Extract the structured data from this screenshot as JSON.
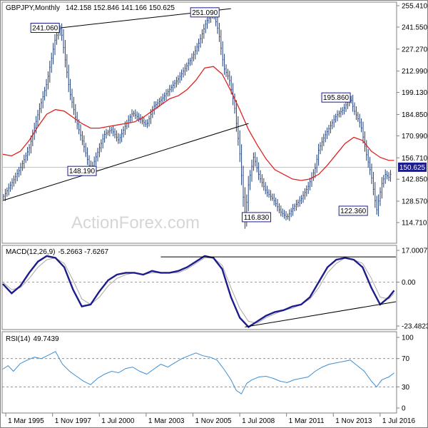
{
  "header": {
    "symbol": "GBPJPY,Monthly",
    "ohlc": "142.158 152.846 141.166 150.625"
  },
  "watermark": "ActionForex.com",
  "colors": {
    "price": "#1f3f7a",
    "ma": "#e02020",
    "macd": "#1c1c8c",
    "signal": "#a8a8a8",
    "rsi": "#3d8fd4",
    "trend": "#000000",
    "label_border": "#1c1c8c",
    "last_price_bg": "#1c1c8c"
  },
  "chart_data": [
    {
      "type": "line",
      "panel": "price",
      "ylim": [
        114.71,
        255.41
      ],
      "y_ticks": [
        "255.410",
        "241.550",
        "227.270",
        "212.990",
        "199.130",
        "184.850",
        "170.990",
        "156.710",
        "142.850",
        "128.570",
        "114.710"
      ],
      "last_value": "150.625",
      "x_ticks": [
        "1 Mar 1995",
        "1 Nov 1997",
        "1 Jul 2000",
        "1 Mar 2003",
        "1 Nov 2005",
        "1 Jul 2008",
        "1 Mar 2011",
        "1 Nov 2013",
        "1 Jul 2016"
      ],
      "x_range": [
        1995.0,
        2017.4
      ],
      "series": [
        {
          "role": "price",
          "x": [
            1995.0,
            1995.6,
            1996.0,
            1996.5,
            1997.0,
            1997.5,
            1998.0,
            1998.3,
            1998.8,
            1999.2,
            1999.6,
            2000.0,
            2000.4,
            2000.8,
            2001.2,
            2001.6,
            2002.0,
            2002.4,
            2002.8,
            2003.2,
            2003.6,
            2004.0,
            2004.5,
            2005.0,
            2005.4,
            2005.8,
            2006.2,
            2006.6,
            2007.0,
            2007.3,
            2007.6,
            2007.9,
            2008.2,
            2008.5,
            2008.8,
            2009.0,
            2009.3,
            2009.6,
            2010.0,
            2010.4,
            2010.8,
            2011.2,
            2011.6,
            2012.0,
            2012.4,
            2012.8,
            2013.0,
            2013.3,
            2013.6,
            2014.0,
            2014.4,
            2014.8,
            2015.0,
            2015.4,
            2015.7,
            2016.0,
            2016.3,
            2016.6,
            2016.8,
            2017.0,
            2017.3
          ],
          "values": [
            131,
            142,
            150,
            163,
            185,
            205,
            235,
            241.06,
            200,
            180,
            165,
            148.19,
            160,
            172,
            175,
            168,
            178,
            186,
            182,
            178,
            190,
            194,
            201,
            208,
            215,
            222,
            232,
            245,
            251.09,
            238,
            215,
            208,
            190,
            160,
            116.83,
            140,
            158,
            145,
            135,
            130,
            122,
            118,
            125,
            130,
            138,
            150,
            162,
            170,
            176,
            184,
            188,
            195.86,
            188,
            178,
            160,
            145,
            122.36,
            140,
            146,
            144,
            150.625
          ]
        },
        {
          "role": "moving-average",
          "x": [
            1995.0,
            1995.5,
            1996.0,
            1996.5,
            1997.0,
            1997.5,
            1998.0,
            1998.5,
            1999.0,
            1999.5,
            2000.0,
            2000.5,
            2001.0,
            2001.5,
            2002.0,
            2002.5,
            2003.0,
            2003.5,
            2004.0,
            2004.5,
            2005.0,
            2005.5,
            2006.0,
            2006.5,
            2007.0,
            2007.5,
            2008.0,
            2008.5,
            2009.0,
            2009.5,
            2010.0,
            2010.5,
            2011.0,
            2011.5,
            2012.0,
            2012.5,
            2013.0,
            2013.5,
            2014.0,
            2014.5,
            2015.0,
            2015.5,
            2016.0,
            2016.5,
            2017.0,
            2017.3
          ],
          "values": [
            159,
            158,
            161,
            168,
            177,
            185,
            188,
            187,
            183,
            179,
            176,
            176,
            177,
            178,
            179,
            180,
            183,
            187,
            191,
            195,
            197,
            201,
            207,
            215,
            216,
            211,
            200,
            188,
            175,
            165,
            156,
            149,
            146,
            143,
            142,
            143,
            146,
            152,
            159,
            166,
            170,
            168,
            161,
            157,
            155,
            155
          ]
        }
      ],
      "annotations": [
        "241.060",
        "251.090",
        "148.190",
        "116.830",
        "195.860",
        "122.360"
      ]
    },
    {
      "type": "line",
      "panel": "macd",
      "title": "MACD(12,26,9)",
      "readout": "-5.2663 -7.6267",
      "ylim": [
        -23.4823,
        17.0007
      ],
      "y_ticks": [
        "17.0007",
        "0.00",
        "-23.4823"
      ],
      "series": [
        {
          "role": "macd",
          "x": [
            1995.0,
            1995.5,
            1996.0,
            1996.5,
            1997.0,
            1997.5,
            1998.0,
            1998.5,
            1999.0,
            1999.5,
            2000.0,
            2000.5,
            2001.0,
            2001.5,
            2002.0,
            2002.5,
            2003.0,
            2003.5,
            2004.0,
            2004.5,
            2005.0,
            2005.5,
            2006.0,
            2006.5,
            2007.0,
            2007.5,
            2008.0,
            2008.5,
            2009.0,
            2009.5,
            2010.0,
            2010.5,
            2011.0,
            2011.5,
            2012.0,
            2012.5,
            2013.0,
            2013.5,
            2014.0,
            2014.5,
            2015.0,
            2015.5,
            2016.0,
            2016.5,
            2017.0,
            2017.3
          ],
          "values": [
            -1,
            -6,
            -2,
            5,
            11,
            14,
            13,
            8,
            -4,
            -13,
            -12,
            -5,
            1,
            4,
            5,
            5,
            4,
            6,
            5,
            5,
            6,
            8,
            11,
            14,
            13,
            7,
            -8,
            -19,
            -24,
            -21,
            -18,
            -16,
            -15,
            -13,
            -12,
            -8,
            0,
            8,
            12,
            13,
            12,
            8,
            -3,
            -12,
            -8,
            -4.5
          ]
        },
        {
          "role": "signal",
          "x": [
            1995.0,
            1995.5,
            1996.0,
            1996.5,
            1997.0,
            1997.5,
            1998.0,
            1998.5,
            1999.0,
            1999.5,
            2000.0,
            2000.5,
            2001.0,
            2001.5,
            2002.0,
            2002.5,
            2003.0,
            2003.5,
            2004.0,
            2004.5,
            2005.0,
            2005.5,
            2006.0,
            2006.5,
            2007.0,
            2007.5,
            2008.0,
            2008.5,
            2009.0,
            2009.5,
            2010.0,
            2010.5,
            2011.0,
            2011.5,
            2012.0,
            2012.5,
            2013.0,
            2013.5,
            2014.0,
            2014.5,
            2015.0,
            2015.5,
            2016.0,
            2016.5,
            2017.0,
            2017.3
          ],
          "values": [
            0,
            -4,
            -3,
            2,
            8,
            12,
            13,
            10,
            1,
            -9,
            -12,
            -8,
            -2,
            2,
            4,
            5,
            4,
            5,
            5,
            5,
            5,
            7,
            10,
            13,
            13,
            9,
            -3,
            -14,
            -21,
            -22,
            -19,
            -17,
            -15,
            -14,
            -12,
            -9,
            -3,
            5,
            10,
            13,
            12,
            10,
            2,
            -8,
            -9,
            -6
          ]
        }
      ]
    },
    {
      "type": "line",
      "panel": "rsi",
      "title": "RSI(14)",
      "readout": "49.7439",
      "ylim": [
        0,
        100
      ],
      "y_ticks": [
        "100",
        "70",
        "30",
        "0"
      ],
      "levels": [
        70,
        30
      ],
      "series": [
        {
          "role": "rsi",
          "x": [
            1995.0,
            1995.3,
            1995.6,
            1996.0,
            1996.4,
            1996.8,
            1997.2,
            1997.6,
            1998.0,
            1998.4,
            1998.8,
            1999.2,
            1999.6,
            2000.0,
            2000.4,
            2000.8,
            2001.2,
            2001.6,
            2002.0,
            2002.4,
            2002.8,
            2003.2,
            2003.6,
            2004.0,
            2004.4,
            2004.8,
            2005.2,
            2005.6,
            2006.0,
            2006.4,
            2006.8,
            2007.2,
            2007.6,
            2008.0,
            2008.3,
            2008.6,
            2008.9,
            2009.2,
            2009.6,
            2010.0,
            2010.4,
            2010.8,
            2011.2,
            2011.6,
            2012.0,
            2012.4,
            2012.8,
            2013.2,
            2013.6,
            2014.0,
            2014.4,
            2014.8,
            2015.2,
            2015.6,
            2016.0,
            2016.3,
            2016.6,
            2017.0,
            2017.3
          ],
          "values": [
            55,
            60,
            52,
            63,
            68,
            72,
            70,
            75,
            80,
            62,
            52,
            45,
            38,
            33,
            42,
            48,
            52,
            50,
            56,
            58,
            52,
            48,
            55,
            62,
            58,
            64,
            70,
            74,
            78,
            74,
            72,
            68,
            55,
            40,
            25,
            20,
            35,
            40,
            44,
            45,
            42,
            38,
            36,
            40,
            42,
            44,
            52,
            58,
            62,
            64,
            66,
            68,
            60,
            52,
            38,
            30,
            40,
            44,
            49.7439
          ]
        }
      ]
    }
  ]
}
